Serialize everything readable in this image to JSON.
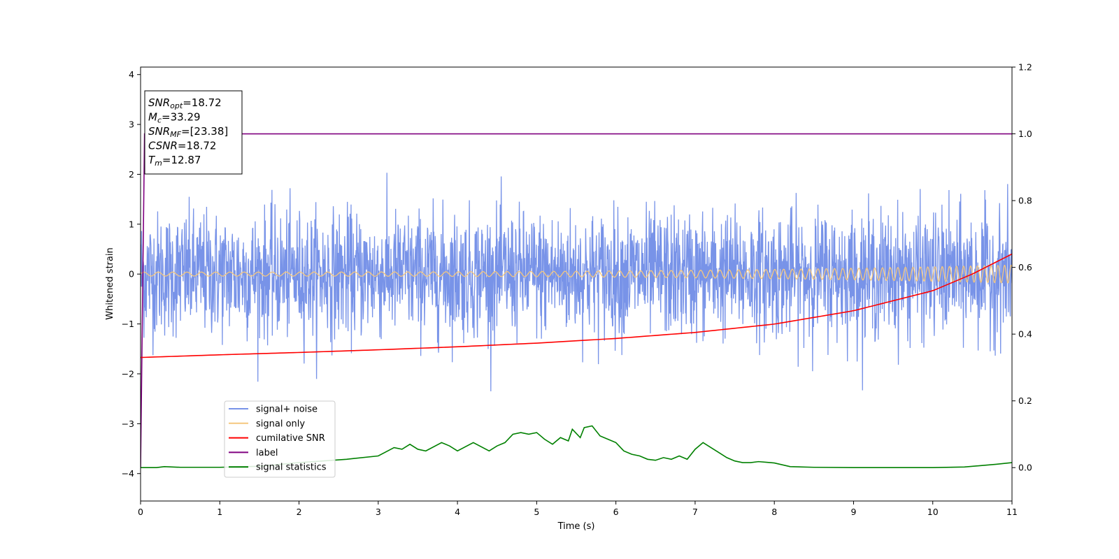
{
  "chart_data": {
    "type": "line",
    "title": "",
    "xlabel": "Time (s)",
    "ylabel": "Whitened strain",
    "xlim": [
      0,
      11
    ],
    "ylim": [
      -4.55,
      4.15
    ],
    "y2lim": [
      -0.1,
      1.2
    ],
    "x_ticks": [
      "0",
      "1",
      "2",
      "3",
      "4",
      "5",
      "6",
      "7",
      "8",
      "9",
      "10",
      "11"
    ],
    "y_ticks": [
      "4",
      "3",
      "2",
      "1",
      "0",
      "−1",
      "−2",
      "−3",
      "−4"
    ],
    "y2_ticks": [
      "1.2",
      "1.0",
      "0.8",
      "0.6",
      "0.4",
      "0.2",
      "0.0"
    ],
    "grid": false,
    "legend_position": "lower-left",
    "series": [
      {
        "name": "signal+ noise",
        "axis": "left",
        "color": "#7893e8",
        "description_envelope_y": [
          -1.4,
          1.4
        ],
        "x": [
          0,
          11
        ]
      },
      {
        "name": "signal only",
        "axis": "left",
        "color": "#f5c77e",
        "amplitude_start": 0.04,
        "amplitude_end": 0.18,
        "freq_start_hz": 5.5,
        "freq_end_hz": 12,
        "x": [
          0,
          11
        ]
      },
      {
        "name": "cumilative SNR",
        "axis": "right",
        "color": "#ff0000",
        "x": [
          0,
          1,
          2,
          3,
          4,
          5,
          6,
          7,
          8,
          9,
          10,
          10.5,
          11
        ],
        "y": [
          0.33,
          0.338,
          0.345,
          0.353,
          0.362,
          0.373,
          0.387,
          0.405,
          0.43,
          0.47,
          0.53,
          0.58,
          0.64
        ]
      },
      {
        "name": "label",
        "axis": "right",
        "color": "#800080",
        "x": [
          0,
          0.05,
          11
        ],
        "y": [
          0.0,
          1.0,
          1.0
        ]
      },
      {
        "name": "signal statistics",
        "axis": "right",
        "color": "#008000",
        "x": [
          0,
          0.2,
          0.3,
          0.5,
          1,
          1.5,
          2,
          2.3,
          2.6,
          3,
          3.2,
          3.3,
          3.4,
          3.5,
          3.6,
          3.8,
          3.9,
          4.0,
          4.2,
          4.4,
          4.5,
          4.6,
          4.7,
          4.8,
          4.9,
          5.0,
          5.1,
          5.2,
          5.3,
          5.4,
          5.45,
          5.55,
          5.6,
          5.7,
          5.8,
          5.9,
          6.0,
          6.1,
          6.2,
          6.3,
          6.4,
          6.5,
          6.6,
          6.7,
          6.8,
          6.9,
          7.0,
          7.1,
          7.2,
          7.3,
          7.4,
          7.5,
          7.6,
          7.7,
          7.8,
          7.9,
          8.0,
          8.2,
          8.5,
          9,
          9.5,
          10,
          10.4,
          10.8,
          11
        ],
        "y": [
          0.0,
          0.0,
          0.003,
          0.001,
          0.001,
          0.004,
          0.015,
          0.02,
          0.025,
          0.035,
          0.06,
          0.055,
          0.07,
          0.055,
          0.05,
          0.075,
          0.065,
          0.05,
          0.075,
          0.05,
          0.065,
          0.075,
          0.1,
          0.105,
          0.1,
          0.105,
          0.085,
          0.07,
          0.09,
          0.08,
          0.115,
          0.09,
          0.12,
          0.125,
          0.095,
          0.085,
          0.075,
          0.05,
          0.04,
          0.035,
          0.025,
          0.022,
          0.03,
          0.025,
          0.035,
          0.025,
          0.055,
          0.075,
          0.06,
          0.045,
          0.03,
          0.02,
          0.015,
          0.015,
          0.018,
          0.016,
          0.014,
          0.003,
          0.001,
          0.0,
          0.0,
          0.0,
          0.002,
          0.01,
          0.015
        ]
      }
    ],
    "annotation": {
      "lines": [
        {
          "sym": "SNR",
          "sub": "opt",
          "rest": "=18.72"
        },
        {
          "sym": "M",
          "sub": "c",
          "rest": "=33.29"
        },
        {
          "sym": "SNR",
          "sub": "MF",
          "rest": "=[23.38]"
        },
        {
          "sym": "CSNR",
          "sub": "",
          "rest": "=18.72"
        },
        {
          "sym": "T",
          "sub": "m",
          "rest": "=12.87"
        }
      ]
    }
  }
}
